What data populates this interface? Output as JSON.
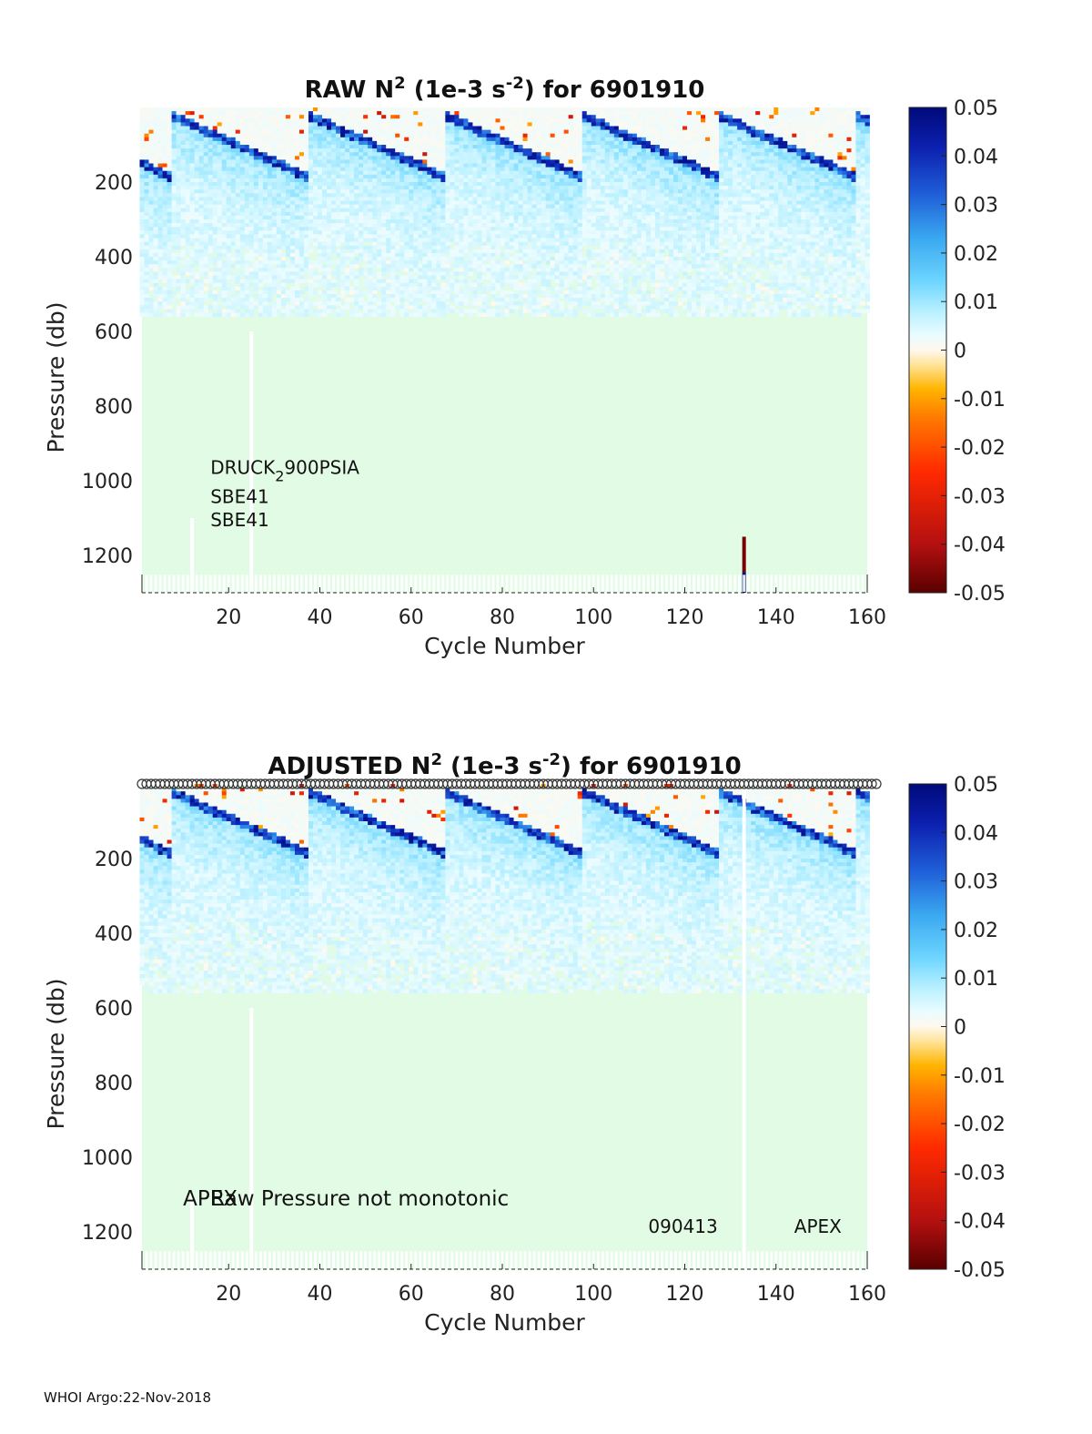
{
  "footer": "WHOI Argo:22-Nov-2018",
  "colors": {
    "background_field": "#e2fbe4",
    "marker_outline": "#333333",
    "colormap": [
      "#5a0000",
      "#b41010",
      "#ff2a00",
      "#ff7a00",
      "#ffb400",
      "#ffe49a",
      "#fff8ee",
      "#eafcff",
      "#b8f0ff",
      "#6fd6ff",
      "#3aa8f0",
      "#1f5fd8",
      "#0c1fae",
      "#000a7a"
    ]
  },
  "chart_data": [
    {
      "type": "heatmap",
      "title_main": "RAW N",
      "title_sup1": "2",
      "title_mid": " (1e-3 s",
      "title_sup2": "-2",
      "title_end": ") for 6901910",
      "xlabel": "Cycle Number",
      "ylabel": "Pressure (db)",
      "xlim": [
        1,
        160
      ],
      "ylim": [
        1300,
        0
      ],
      "xticks": [
        20,
        40,
        60,
        80,
        100,
        120,
        140,
        160
      ],
      "yticks": [
        200,
        400,
        600,
        800,
        1000,
        1200
      ],
      "colorbar": {
        "min": -0.05,
        "max": 0.05,
        "ticks": [
          "0.05",
          "0.04",
          "0.03",
          "0.02",
          "0.01",
          "0",
          "-0.01",
          "-0.02",
          "-0.03",
          "-0.04",
          "-0.05"
        ]
      },
      "annotations": [
        {
          "text": "DRUCK",
          "sub": "2",
          "rest": "900PSIA",
          "x": 16,
          "y": 970,
          "size": 14
        },
        {
          "text": "SBE41",
          "x": 16,
          "y": 1048,
          "size": 14
        },
        {
          "text": "SBE41",
          "x": 16,
          "y": 1110,
          "size": 14
        }
      ],
      "marker_row": false
    },
    {
      "type": "heatmap",
      "title_main": "ADJUSTED N",
      "title_sup1": "2",
      "title_mid": " (1e-3 s",
      "title_sup2": "-2",
      "title_end": ") for 6901910",
      "xlabel": "Cycle Number",
      "ylabel": "Pressure (db)",
      "xlim": [
        1,
        160
      ],
      "ylim": [
        1300,
        0
      ],
      "xticks": [
        20,
        40,
        60,
        80,
        100,
        120,
        140,
        160
      ],
      "yticks": [
        200,
        400,
        600,
        800,
        1000,
        1200
      ],
      "colorbar": {
        "min": -0.05,
        "max": 0.05,
        "ticks": [
          "0.05",
          "0.04",
          "0.03",
          "0.02",
          "0.01",
          "0",
          "-0.01",
          "-0.02",
          "-0.03",
          "-0.04",
          "-0.05"
        ]
      },
      "annotations": [
        {
          "text": "APEX",
          "x": 10,
          "y": 1115,
          "size": 17
        },
        {
          "text": "Raw Pressure not monotonic",
          "x": 16,
          "y": 1115,
          "size": 17
        },
        {
          "text": "090413",
          "x": 112,
          "y": 1190,
          "size": 14
        },
        {
          "text": "APEX",
          "x": 144,
          "y": 1190,
          "size": 14
        }
      ],
      "marker_row": true
    }
  ]
}
